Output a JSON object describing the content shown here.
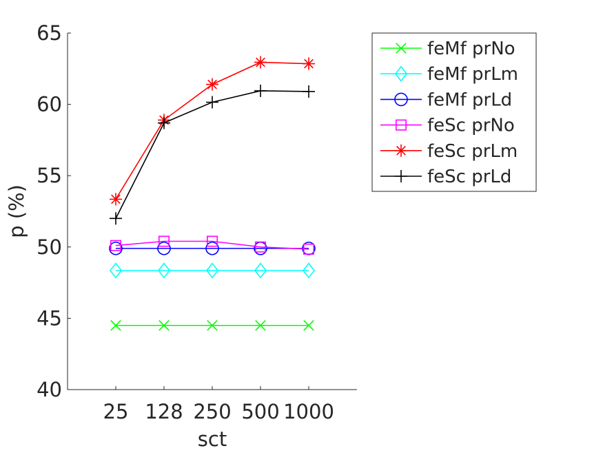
{
  "chart_data": {
    "type": "line",
    "xlabel": "sct",
    "ylabel": "p (%)",
    "categories": [
      "25",
      "128",
      "250",
      "500",
      "1000"
    ],
    "ylim": [
      40,
      65
    ],
    "yticks": [
      "40",
      "45",
      "50",
      "55",
      "60",
      "65"
    ],
    "grid": false,
    "legend_position": "outside-top-right",
    "series": [
      {
        "name": "feMf prNo",
        "color": "#00ff00",
        "marker": "x",
        "values": [
          44.5,
          44.5,
          44.5,
          44.5,
          44.5
        ]
      },
      {
        "name": "feMf prLm",
        "color": "#00ffff",
        "marker": "diamond",
        "values": [
          48.35,
          48.35,
          48.35,
          48.35,
          48.35
        ]
      },
      {
        "name": "feMf prLd",
        "color": "#0000ff",
        "marker": "circle",
        "values": [
          49.9,
          49.9,
          49.9,
          49.9,
          49.9
        ]
      },
      {
        "name": "feSc prNo",
        "color": "#ff00ff",
        "marker": "square",
        "values": [
          50.1,
          50.4,
          50.4,
          50.0,
          49.85
        ]
      },
      {
        "name": "feSc prLm",
        "color": "#ff0000",
        "marker": "asterisk",
        "values": [
          53.35,
          58.9,
          61.4,
          62.95,
          62.85
        ]
      },
      {
        "name": "feSc prLd",
        "color": "#000000",
        "marker": "plus",
        "values": [
          52.0,
          58.7,
          60.15,
          60.95,
          60.9
        ]
      }
    ]
  }
}
